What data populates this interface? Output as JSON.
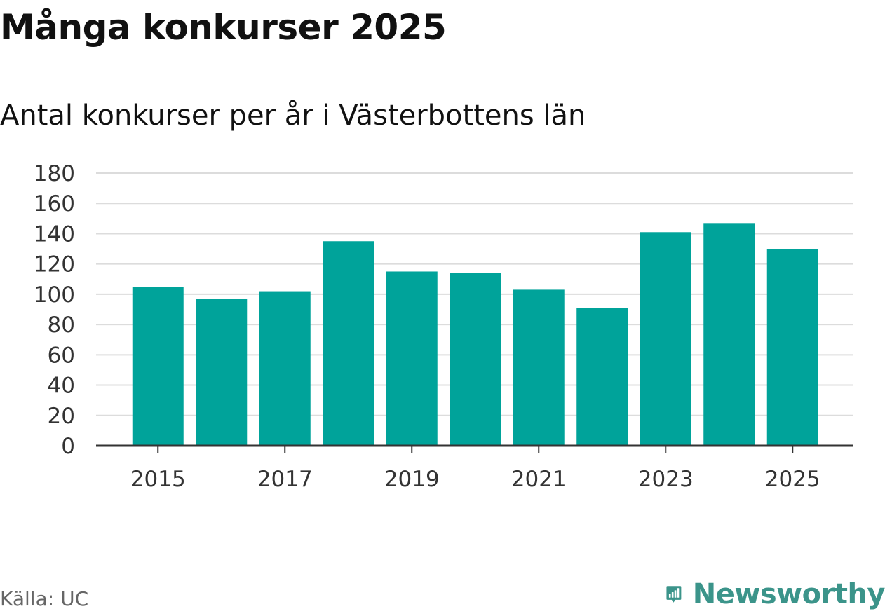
{
  "chart_data": {
    "type": "bar",
    "title": "Många konkurser 2025",
    "subtitle": "Antal konkurser per år i Västerbottens län",
    "categories": [
      "2015",
      "2016",
      "2017",
      "2018",
      "2019",
      "2020",
      "2021",
      "2022",
      "2023",
      "2024",
      "2025"
    ],
    "series": [
      {
        "name": "Antal konkurser",
        "values": [
          105,
          97,
          102,
          135,
          115,
          114,
          103,
          91,
          141,
          147,
          130
        ]
      }
    ],
    "x_tick_labels": [
      "2015",
      "2017",
      "2019",
      "2021",
      "2023",
      "2025"
    ],
    "y_ticks": [
      0,
      20,
      40,
      60,
      80,
      100,
      120,
      140,
      160,
      180
    ],
    "ylim": [
      0,
      180
    ],
    "xlabel": "",
    "ylabel": "",
    "grid": true,
    "bar_color": "#00a39a"
  },
  "footer": {
    "source": "Källa: UC",
    "brand": "Newsworthy",
    "brand_icon": "newsworthy-logo-icon",
    "brand_color": "#3b948a"
  }
}
